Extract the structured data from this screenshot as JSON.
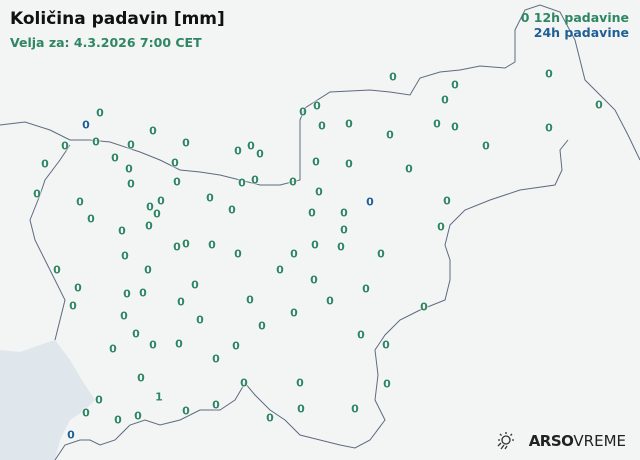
{
  "header": {
    "title": "Količina padavin [mm]",
    "valid": "Velja za: 4.3.2026 7:00 CET"
  },
  "legend": {
    "sample": "0",
    "h12": "12h padavine",
    "h24": "24h padavine"
  },
  "colors": {
    "h12": "#2e8663",
    "h24": "#1f5f96",
    "border": "#5d6b80",
    "sea": "#dfe6ec"
  },
  "stations": [
    "0",
    "0",
    "0",
    "0",
    "0",
    "0",
    "0",
    "0",
    "0",
    "0",
    "0",
    "0",
    "0",
    "0",
    "0",
    "0",
    "0",
    "0",
    "0",
    "0",
    "0",
    "0",
    "0",
    "0",
    "0",
    "0",
    "0",
    "0",
    "0",
    "0",
    "0",
    "0",
    "0",
    "0",
    "0",
    "0",
    "0",
    "0",
    "0",
    "0",
    "0",
    "0",
    "0",
    "0",
    "0",
    "0",
    "0",
    "0",
    "0",
    "0",
    "0",
    "0",
    "0",
    "0",
    "0",
    "0",
    "0",
    "0",
    "0",
    "0",
    "0",
    "0",
    "0",
    "0",
    "0",
    "0",
    "0",
    "0",
    "0",
    "0",
    "0",
    "0",
    "0",
    "0",
    "0",
    "0",
    "0",
    "0",
    "0",
    "0",
    "0",
    "0",
    "0",
    "0",
    "0",
    "1",
    "0",
    "0",
    "0",
    "0",
    "0",
    "0",
    "0",
    "0",
    "0",
    "0",
    "0",
    "0",
    "0",
    "0",
    "0"
  ],
  "stations_24h": [
    "0",
    "0",
    "0"
  ],
  "logo": {
    "icon": "sun-rain-icon",
    "brand": "ARSO",
    "product": "VREME"
  }
}
